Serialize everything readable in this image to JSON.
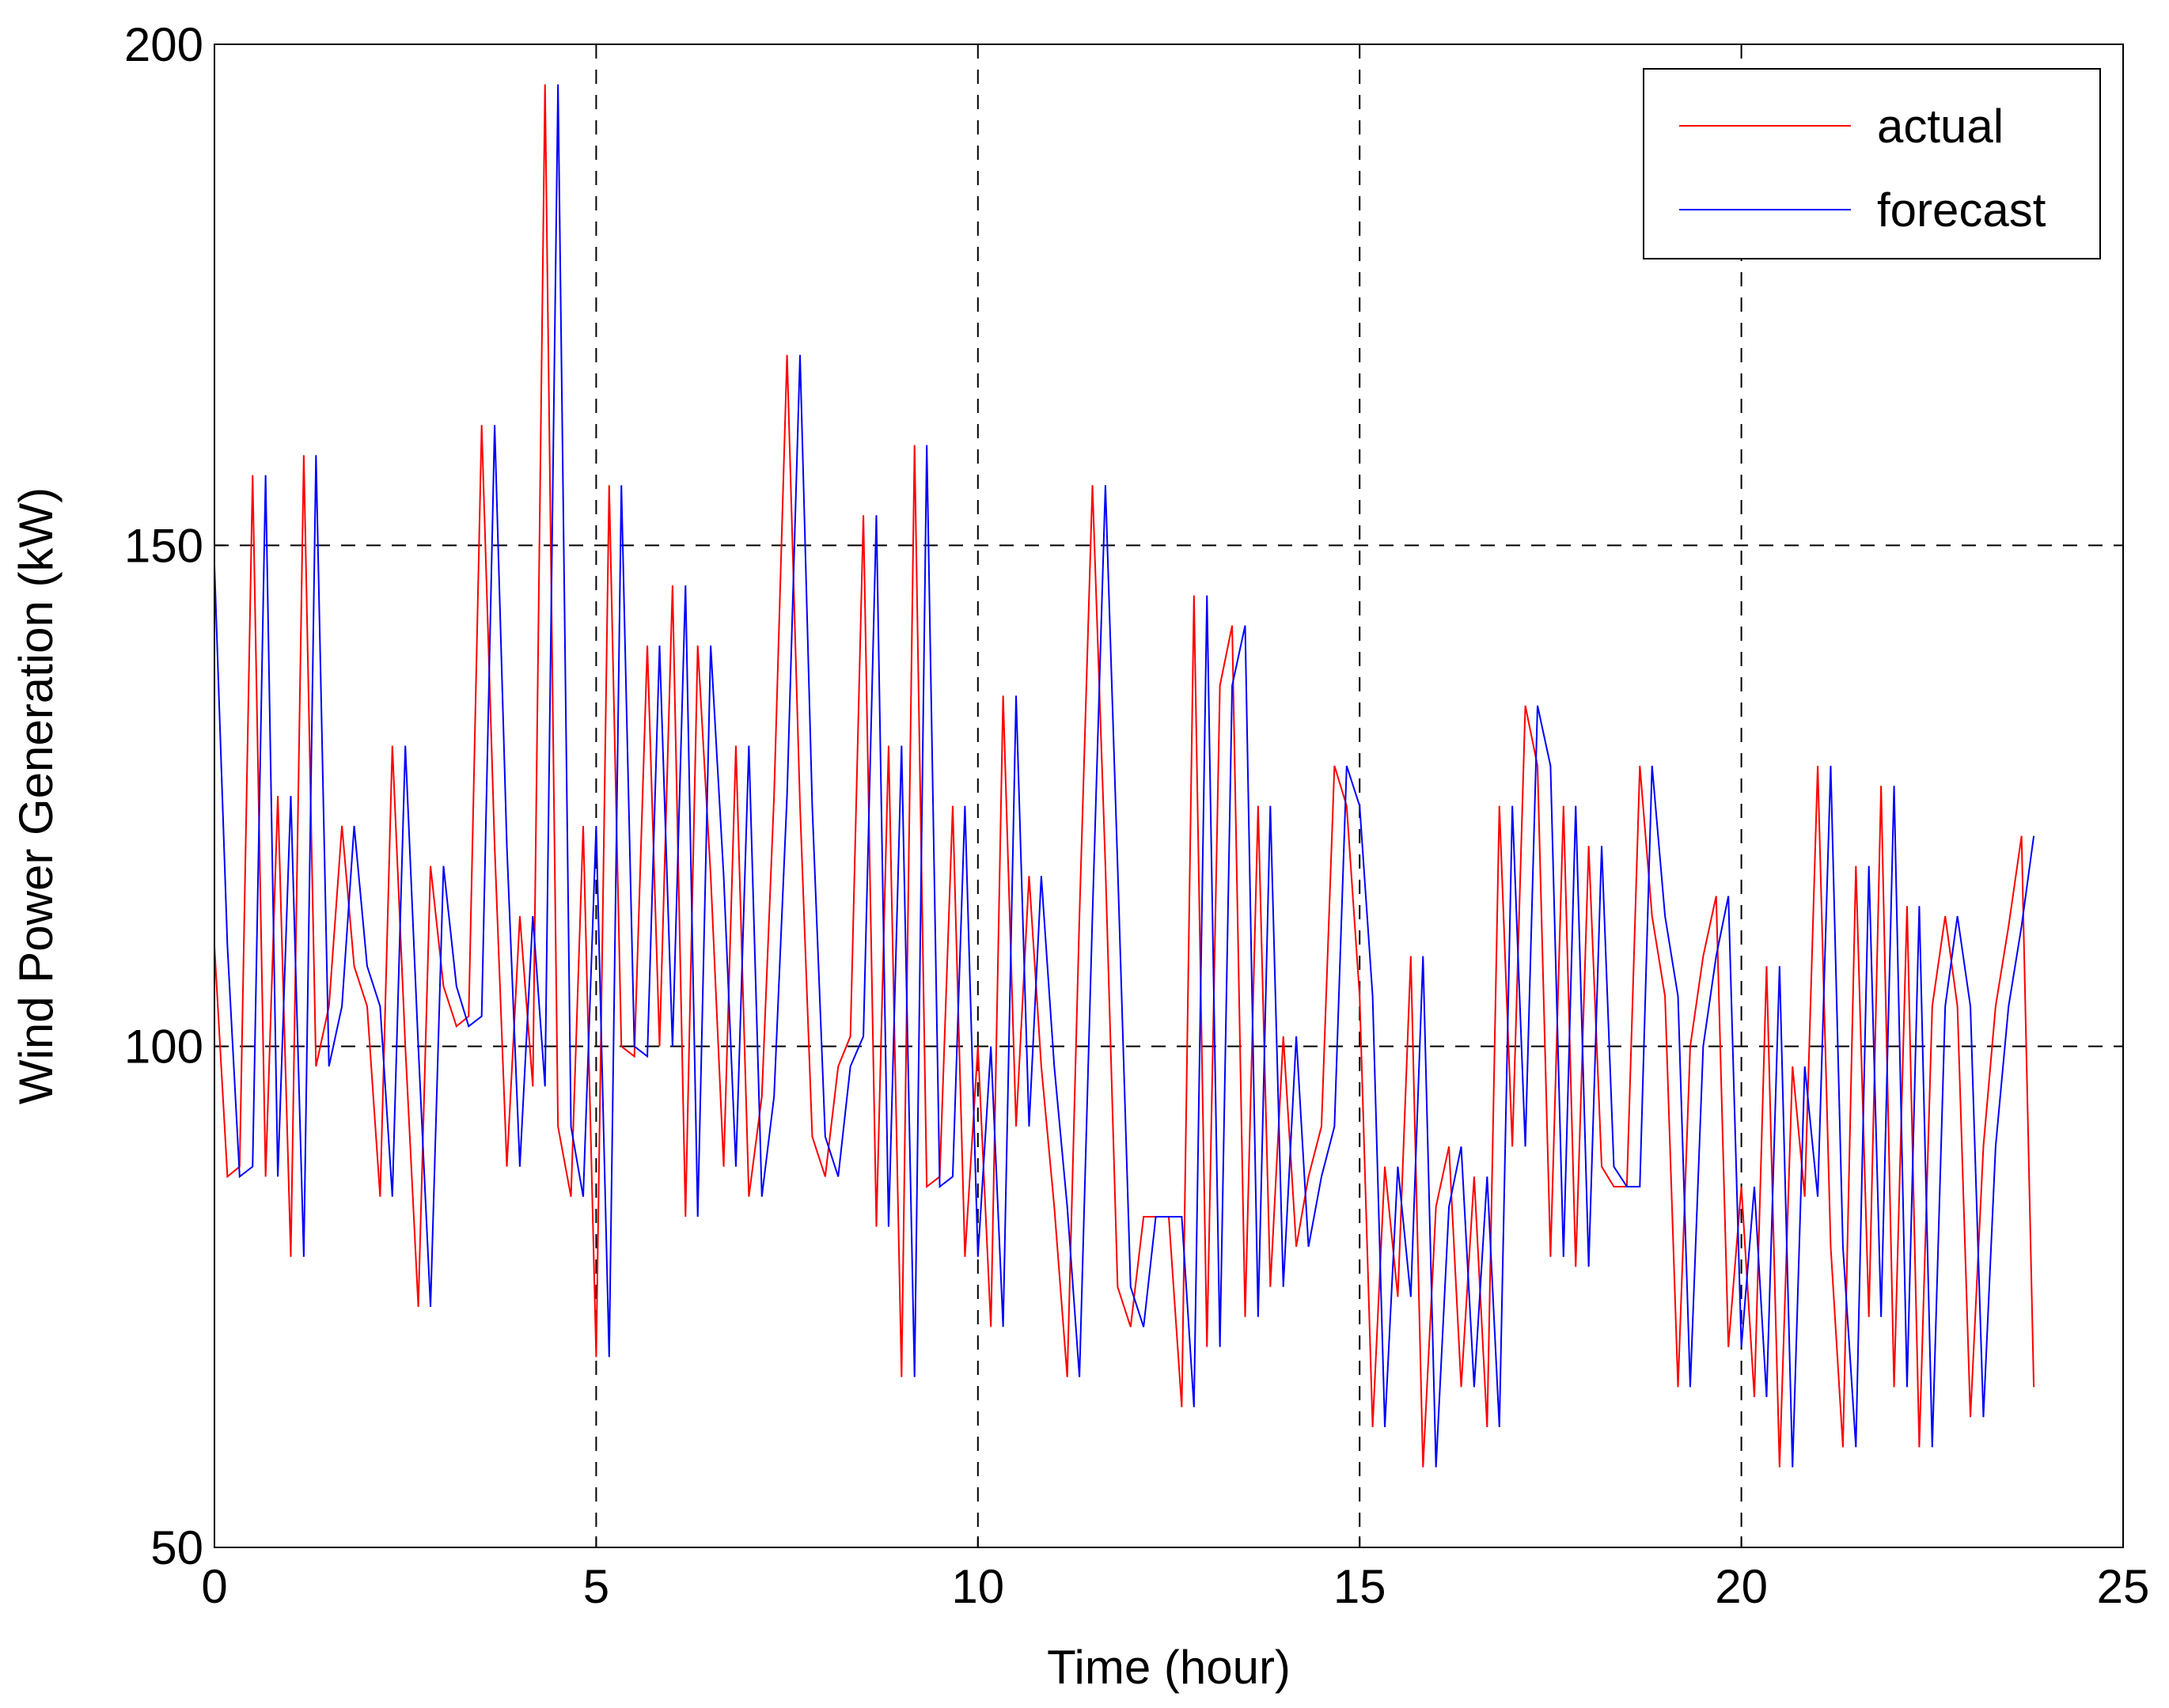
{
  "chart_data": {
    "type": "line",
    "xlabel": "Time (hour)",
    "ylabel": "Wind Power Generation (kW)",
    "x": [
      0,
      0.17,
      0.33,
      0.5,
      0.67,
      0.83,
      1,
      1.17,
      1.33,
      1.5,
      1.67,
      1.83,
      2,
      2.17,
      2.33,
      2.5,
      2.67,
      2.83,
      3,
      3.17,
      3.33,
      3.5,
      3.67,
      3.83,
      4,
      4.17,
      4.33,
      4.5,
      4.67,
      4.83,
      5,
      5.17,
      5.33,
      5.5,
      5.67,
      5.83,
      6,
      6.17,
      6.33,
      6.5,
      6.67,
      6.83,
      7,
      7.17,
      7.33,
      7.5,
      7.67,
      7.83,
      8,
      8.17,
      8.33,
      8.5,
      8.67,
      8.83,
      9,
      9.17,
      9.33,
      9.5,
      9.67,
      9.83,
      10,
      10.17,
      10.33,
      10.5,
      10.67,
      10.83,
      11,
      11.17,
      11.33,
      11.5,
      11.67,
      11.83,
      12,
      12.17,
      12.33,
      12.5,
      12.67,
      12.83,
      13,
      13.17,
      13.33,
      13.5,
      13.67,
      13.83,
      14,
      14.17,
      14.33,
      14.5,
      14.67,
      14.83,
      15,
      15.17,
      15.33,
      15.5,
      15.67,
      15.83,
      16,
      16.17,
      16.33,
      16.5,
      16.67,
      16.83,
      17,
      17.17,
      17.33,
      17.5,
      17.67,
      17.83,
      18,
      18.17,
      18.33,
      18.5,
      18.67,
      18.83,
      19,
      19.17,
      19.33,
      19.5,
      19.67,
      19.83,
      20,
      20.17,
      20.33,
      20.5,
      20.67,
      20.83,
      21,
      21.17,
      21.33,
      21.5,
      21.67,
      21.83,
      22,
      22.17,
      22.33,
      22.5,
      22.67,
      22.83,
      23,
      23.17,
      23.33,
      23.5,
      23.67,
      23.83
    ],
    "series": [
      {
        "name": "actual",
        "color": "#ff0000",
        "values": [
          110,
          87,
          88,
          157,
          87,
          125,
          79,
          159,
          98,
          104,
          122,
          108,
          104,
          85,
          130,
          100,
          74,
          118,
          106,
          102,
          103,
          162,
          120,
          88,
          113,
          96,
          196,
          92,
          85,
          122,
          69,
          156,
          100,
          99,
          140,
          100,
          146,
          83,
          140,
          117,
          88,
          130,
          85,
          95,
          125,
          169,
          124,
          91,
          87,
          98,
          101,
          153,
          82,
          130,
          67,
          160,
          86,
          87,
          124,
          79,
          100,
          72,
          135,
          92,
          117,
          98,
          84,
          67,
          113,
          156,
          118,
          76,
          72,
          83,
          83,
          83,
          64,
          145,
          70,
          136,
          142,
          73,
          124,
          76,
          101,
          80,
          87,
          92,
          128,
          124,
          105,
          62,
          88,
          75,
          109,
          58,
          84,
          90,
          66,
          87,
          62,
          124,
          90,
          134,
          128,
          79,
          124,
          78,
          120,
          88,
          86,
          86,
          128,
          113,
          105,
          66,
          100,
          109,
          115,
          70,
          86,
          65,
          108,
          58,
          98,
          85,
          128,
          80,
          60,
          118,
          73,
          126,
          66,
          114,
          60,
          104,
          113,
          104,
          63,
          90,
          104,
          112,
          121,
          66
        ]
      },
      {
        "name": "forecast",
        "color": "#0000ff",
        "values": [
          148,
          110,
          87,
          88,
          157,
          87,
          125,
          79,
          159,
          98,
          104,
          122,
          108,
          104,
          85,
          130,
          100,
          74,
          118,
          106,
          102,
          103,
          162,
          120,
          88,
          113,
          96,
          196,
          92,
          85,
          122,
          69,
          156,
          100,
          99,
          140,
          100,
          146,
          83,
          140,
          117,
          88,
          130,
          85,
          95,
          125,
          169,
          124,
          91,
          87,
          98,
          101,
          153,
          82,
          130,
          67,
          160,
          86,
          87,
          124,
          79,
          100,
          72,
          135,
          92,
          117,
          98,
          84,
          67,
          113,
          156,
          118,
          76,
          72,
          83,
          83,
          83,
          64,
          145,
          70,
          136,
          142,
          73,
          124,
          76,
          101,
          80,
          87,
          92,
          128,
          124,
          105,
          62,
          88,
          75,
          109,
          58,
          84,
          90,
          66,
          87,
          62,
          124,
          90,
          134,
          128,
          79,
          124,
          78,
          120,
          88,
          86,
          86,
          128,
          113,
          105,
          66,
          100,
          109,
          115,
          70,
          86,
          65,
          108,
          58,
          98,
          85,
          128,
          80,
          60,
          118,
          73,
          126,
          66,
          114,
          60,
          104,
          113,
          104,
          63,
          90,
          104,
          112,
          121
        ]
      }
    ],
    "xlim": [
      0,
      25
    ],
    "xticks": [
      0,
      5,
      10,
      15,
      20,
      25
    ],
    "ylim": [
      50,
      200
    ],
    "yticks": [
      50,
      100,
      150,
      200
    ],
    "grid": true,
    "legend": "upper right"
  }
}
